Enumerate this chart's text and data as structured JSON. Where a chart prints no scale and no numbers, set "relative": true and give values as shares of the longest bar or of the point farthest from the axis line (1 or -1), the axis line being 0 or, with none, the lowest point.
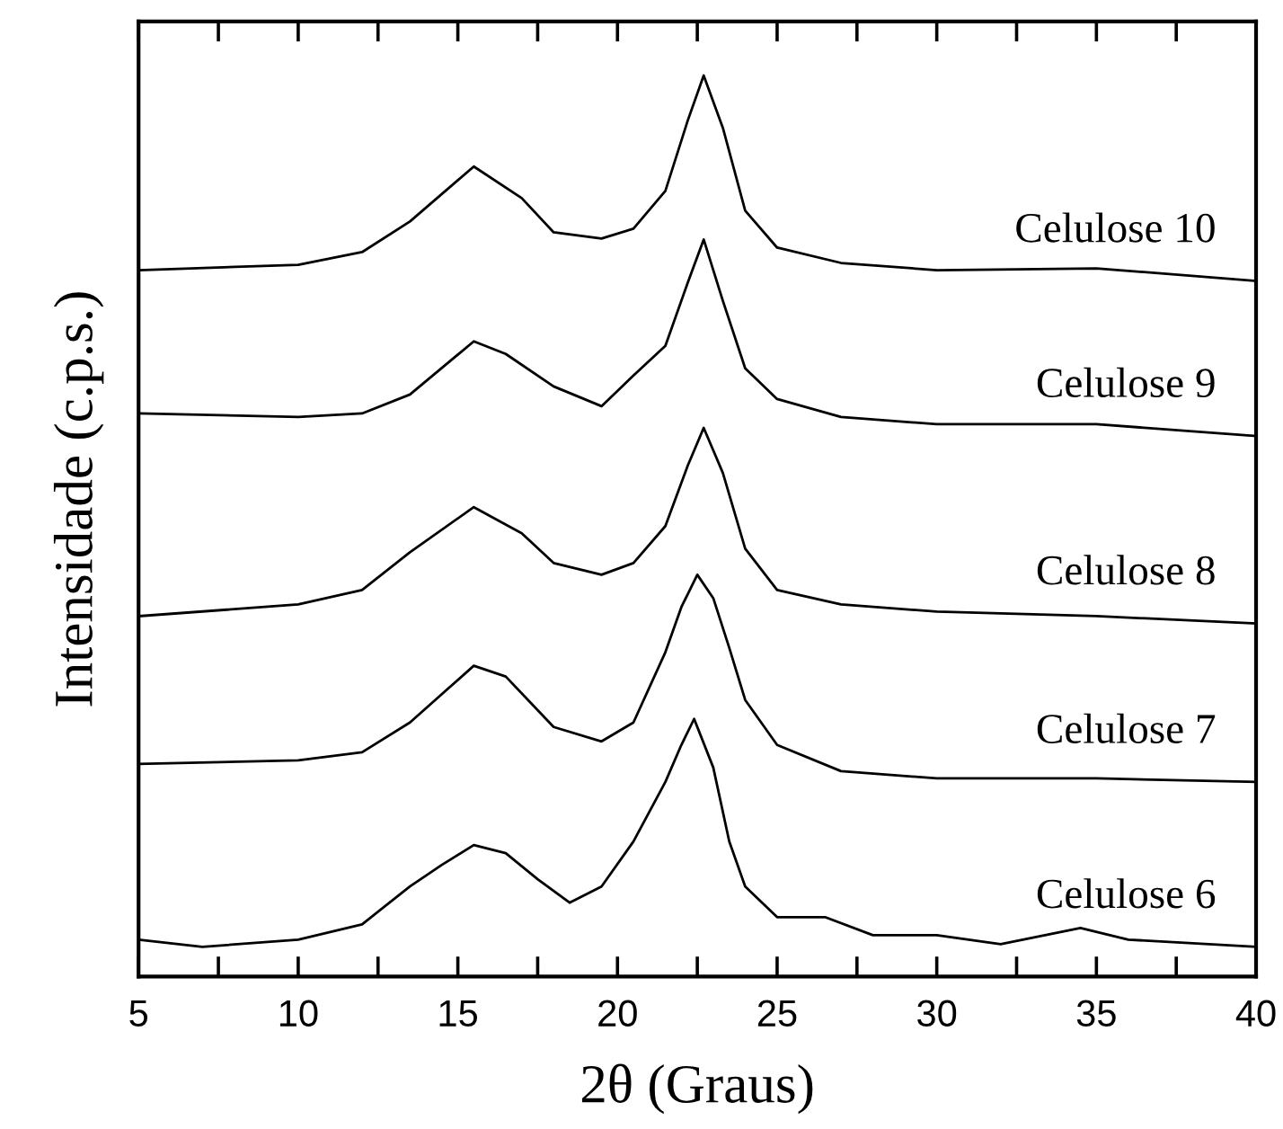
{
  "chart_data": {
    "type": "line",
    "relative": true,
    "xlabel": "2θ (Graus)",
    "ylabel": "Intensidade (c.p.s.)",
    "xlim": [
      5,
      40
    ],
    "xticks": [
      5,
      {
        "value": 7.5,
        "label": null
      },
      10,
      {
        "value": 12.5,
        "label": null
      },
      15,
      {
        "value": 17.5,
        "label": null
      },
      20,
      {
        "value": 22.5,
        "label": null
      },
      25,
      {
        "value": 27.5,
        "label": null
      },
      30,
      {
        "value": 32.5,
        "label": null
      },
      35,
      {
        "value": 37.5,
        "label": null
      },
      40
    ],
    "tick_labels": "x",
    "grid": false,
    "legend": false,
    "marker": "none",
    "line_style": "solid",
    "series": [
      {
        "name": "Celulose 10",
        "color": "#000000",
        "x": [
          5,
          10,
          12,
          13.5,
          15.5,
          17,
          18,
          19.5,
          20.5,
          21.5,
          22.2,
          22.7,
          23.3,
          24,
          25,
          27,
          30,
          35,
          40
        ],
        "values": [
          0.784,
          0.79,
          0.804,
          0.838,
          0.899,
          0.864,
          0.826,
          0.819,
          0.83,
          0.872,
          0.95,
          1.0,
          0.942,
          0.85,
          0.809,
          0.792,
          0.784,
          0.786,
          0.772
        ]
      },
      {
        "name": "Celulose 9",
        "color": "#000000",
        "x": [
          5,
          10,
          12,
          13.5,
          15.5,
          16.5,
          18,
          19.5,
          20.5,
          21.5,
          22.2,
          22.7,
          23.3,
          24,
          25,
          27,
          30,
          35,
          40
        ],
        "values": [
          0.625,
          0.621,
          0.625,
          0.646,
          0.705,
          0.691,
          0.655,
          0.633,
          0.667,
          0.7,
          0.77,
          0.818,
          0.75,
          0.675,
          0.641,
          0.621,
          0.613,
          0.613,
          0.6
        ]
      },
      {
        "name": "Celulose 8",
        "color": "#000000",
        "x": [
          5,
          10,
          12,
          13.5,
          15.5,
          17,
          18,
          19.5,
          20.5,
          21.5,
          22.2,
          22.7,
          23.3,
          24,
          25,
          27,
          30,
          35,
          40
        ],
        "values": [
          0.4,
          0.413,
          0.429,
          0.471,
          0.521,
          0.492,
          0.459,
          0.446,
          0.459,
          0.5,
          0.567,
          0.609,
          0.559,
          0.475,
          0.429,
          0.413,
          0.405,
          0.4,
          0.392
        ]
      },
      {
        "name": "Celulose 7",
        "color": "#000000",
        "x": [
          5,
          10,
          12,
          13.5,
          15.5,
          16.5,
          18,
          19.5,
          20.5,
          21.5,
          22,
          22.5,
          23,
          23.5,
          24,
          25,
          27,
          30,
          35,
          40
        ],
        "values": [
          0.236,
          0.24,
          0.249,
          0.282,
          0.345,
          0.333,
          0.277,
          0.261,
          0.282,
          0.36,
          0.41,
          0.446,
          0.42,
          0.365,
          0.307,
          0.257,
          0.228,
          0.22,
          0.22,
          0.216
        ]
      },
      {
        "name": "Celulose 6",
        "color": "#000000",
        "x": [
          5,
          7,
          10,
          12,
          13.5,
          14.5,
          15.5,
          16.5,
          17.5,
          18.5,
          19.5,
          20.5,
          21.5,
          22,
          22.4,
          23,
          23.5,
          24,
          25,
          26.5,
          28,
          30,
          32,
          34.5,
          36,
          40
        ],
        "values": [
          0.041,
          0.033,
          0.041,
          0.058,
          0.1,
          0.124,
          0.146,
          0.137,
          0.108,
          0.082,
          0.1,
          0.15,
          0.216,
          0.257,
          0.286,
          0.232,
          0.15,
          0.1,
          0.066,
          0.066,
          0.046,
          0.046,
          0.036,
          0.054,
          0.041,
          0.033
        ]
      }
    ]
  }
}
